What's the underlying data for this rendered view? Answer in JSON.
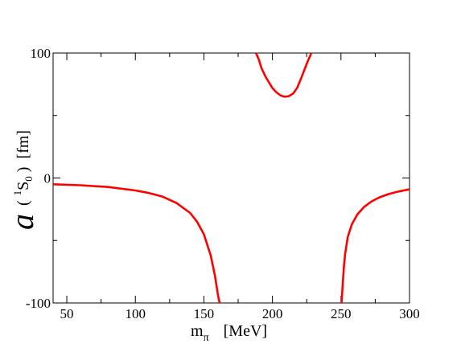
{
  "chart_data": {
    "type": "line",
    "title": "",
    "xlabel": {
      "main": "m",
      "sub": "π",
      "unit": "[MeV]"
    },
    "ylabel": {
      "symbol": "a",
      "open": "(",
      "sup": "1",
      "state": "S",
      "sub": "0",
      "close": ")",
      "unit": "[fm]"
    },
    "xlim": [
      40,
      300
    ],
    "ylim": [
      -100,
      100
    ],
    "x_ticks": [
      "50",
      "100",
      "150",
      "200",
      "250",
      "300"
    ],
    "y_ticks": [
      "-100",
      "0",
      "100"
    ],
    "grid": false,
    "line_color": "#ff0000",
    "series": [
      {
        "segments": [
          {
            "x": [
              40,
              60,
              80,
              100,
              110,
              120,
              130,
              140,
              145,
              150,
              155,
              158,
              160,
              161,
              162,
              163,
              163.6
            ],
            "y": [
              -5,
              -5.8,
              -7.2,
              -10,
              -12,
              -15,
              -20,
              -28,
              -35,
              -45,
              -62,
              -78,
              -92,
              -98,
              -101,
              -105,
              -110
            ]
          },
          {
            "x": [
              188,
              190,
              192,
              195,
              198,
              200,
              203,
              206,
              209,
              212,
              215,
              218,
              221,
              224,
              226,
              228,
              229
            ],
            "y": [
              100,
              95,
              88,
              81,
              75.5,
              72,
              68.5,
              66,
              65,
              65.5,
              67.5,
              72,
              80,
              88.5,
              94,
              99,
              102
            ]
          },
          {
            "x": [
              250.2,
              251,
              252,
              253,
              255,
              258,
              262,
              267,
              272,
              278,
              285,
              292,
              300
            ],
            "y": [
              -105,
              -90,
              -73,
              -61,
              -47,
              -37,
              -29,
              -23,
              -19,
              -15.5,
              -12.8,
              -10.8,
              -9
            ]
          }
        ]
      }
    ]
  }
}
